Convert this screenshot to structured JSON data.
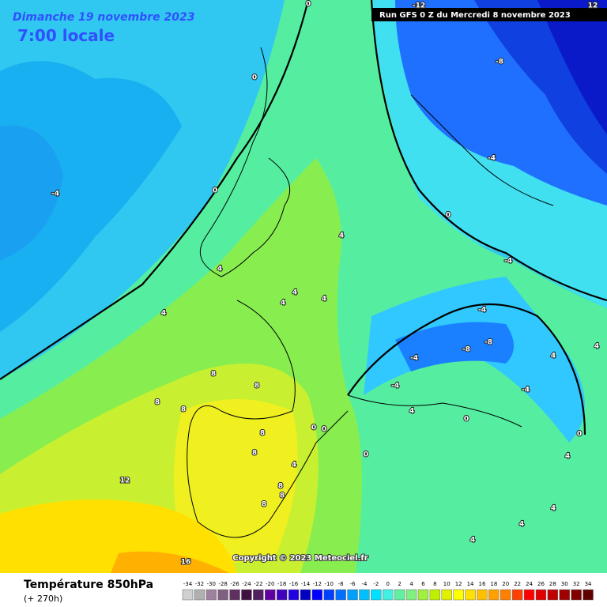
{
  "header": {
    "date": "Dimanche 19 novembre 2023",
    "time": "7:00 locale",
    "run": "Run GFS 0 Z du Mercredi 8 novembre 2023"
  },
  "copyright": "Copyright © 2023 Meteociel.fr",
  "legend": {
    "title": "Température 850hPa",
    "lead": "(+ 270h)",
    "scale": {
      "values": [
        -34,
        -32,
        -30,
        -28,
        -26,
        -24,
        -22,
        -20,
        -18,
        -16,
        -14,
        -12,
        -10,
        -8,
        -6,
        -4,
        -2,
        0,
        2,
        4,
        6,
        8,
        10,
        12,
        14,
        16,
        18,
        20,
        22,
        24,
        26,
        28,
        30,
        32,
        34
      ],
      "colors": [
        "#d0d0d0",
        "#b0b0b0",
        "#a080a0",
        "#806080",
        "#603060",
        "#401040",
        "#502060",
        "#6000a0",
        "#4000c0",
        "#2000e0",
        "#0000c0",
        "#0000ff",
        "#0040ff",
        "#0070ff",
        "#00a0ff",
        "#00c0ff",
        "#00e0ff",
        "#40f0e0",
        "#60f0a0",
        "#80f080",
        "#a0f040",
        "#c0f000",
        "#e0f000",
        "#ffff00",
        "#ffe000",
        "#ffc000",
        "#ffa000",
        "#ff8000",
        "#ff4000",
        "#ff0000",
        "#e00000",
        "#c00000",
        "#a00000",
        "#800000",
        "#600000"
      ]
    }
  },
  "map": {
    "contour_labels": [
      -12,
      12,
      0,
      -8,
      0,
      -4,
      0,
      -4,
      0,
      4,
      -4,
      4,
      4,
      4,
      4,
      4,
      -4,
      -8,
      -8,
      -4,
      -4,
      -4,
      8,
      8,
      8,
      8,
      4,
      0,
      8,
      8,
      4,
      12,
      8,
      8,
      8,
      16,
      4,
      0,
      4,
      4,
      4,
      4,
      4,
      0,
      0,
      0
    ]
  }
}
